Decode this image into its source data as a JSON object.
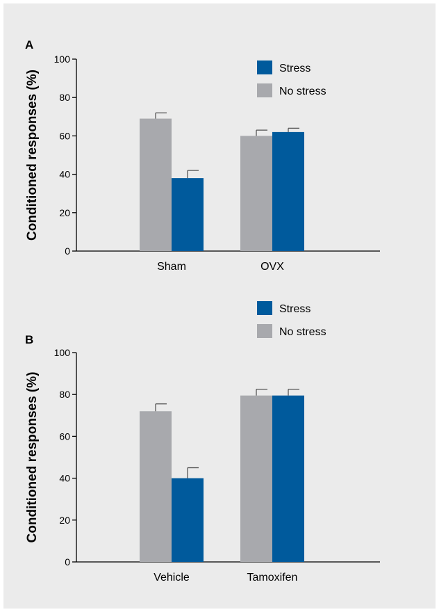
{
  "chart_data": [
    {
      "panel": "A",
      "type": "bar",
      "ylabel": "Conditioned responses (%)",
      "ylim": [
        0,
        100
      ],
      "yticks": [
        "0",
        "20",
        "40",
        "60",
        "80",
        "100"
      ],
      "categories": [
        "Sham",
        "OVX"
      ],
      "legend_position": "top",
      "series": [
        {
          "name": "No stress",
          "color": "#a8a9ad",
          "values": [
            69,
            60
          ],
          "errors": [
            3,
            3
          ]
        },
        {
          "name": "Stress",
          "color": "#005a9c",
          "values": [
            38,
            62
          ],
          "errors": [
            4,
            2
          ]
        }
      ],
      "grid": false
    },
    {
      "panel": "B",
      "type": "bar",
      "ylabel": "Conditioned responses (%)",
      "ylim": [
        0,
        100
      ],
      "yticks": [
        "0",
        "20",
        "40",
        "60",
        "80",
        "100"
      ],
      "categories": [
        "Vehicle",
        "Tamoxifen"
      ],
      "legend_position": "top",
      "series": [
        {
          "name": "No stress",
          "color": "#a8a9ad",
          "values": [
            72,
            79.5
          ],
          "errors": [
            3.5,
            3
          ]
        },
        {
          "name": "Stress",
          "color": "#005a9c",
          "values": [
            40,
            79.5
          ],
          "errors": [
            5,
            3
          ]
        }
      ],
      "grid": false
    }
  ]
}
